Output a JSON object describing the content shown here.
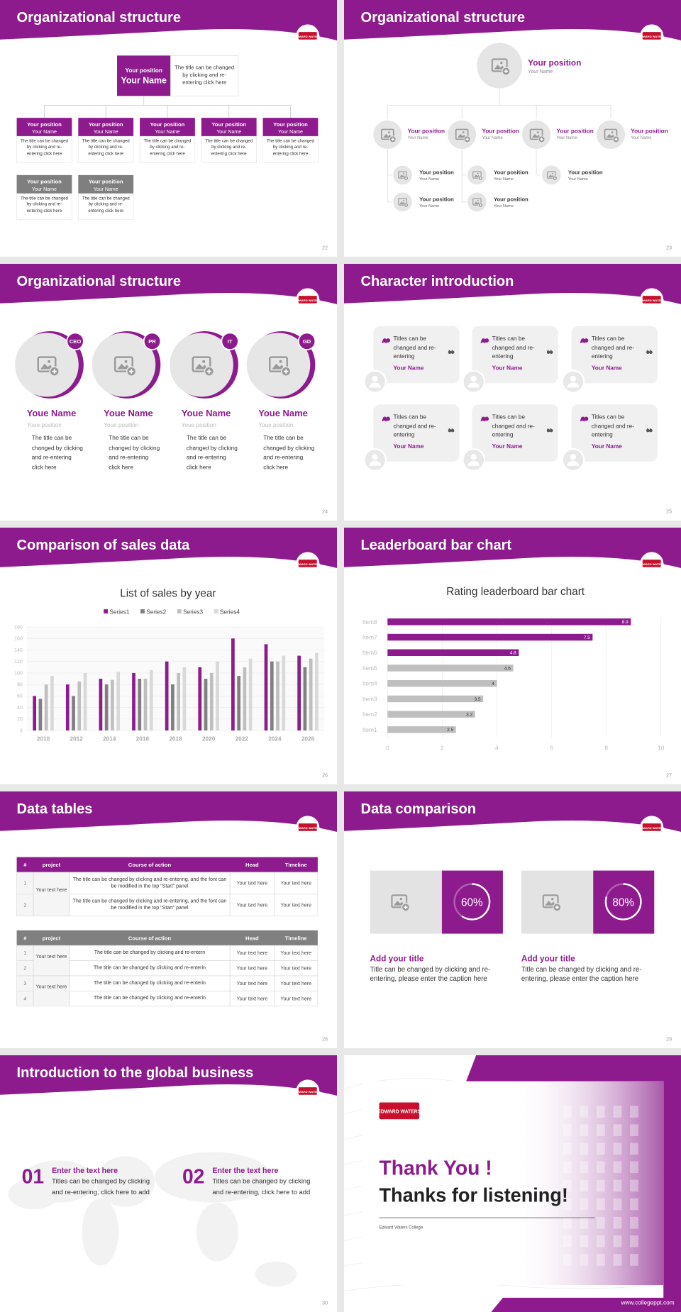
{
  "logo": "EDWARD WATERS",
  "slides": [
    {
      "title": "Organizational structure",
      "page": 22,
      "head": {
        "position": "Your position",
        "name": "Your Name",
        "text": "The title can be changed by clicking and re-entering click here"
      },
      "members": [
        {
          "position": "Your position",
          "name": "Your Name",
          "text": "The title can be changed by clicking and re-entering click here",
          "color": "#8e1b8e"
        },
        {
          "position": "Your position",
          "name": "Your Name",
          "text": "The title can be changed by clicking and re-entering click here",
          "color": "#8e1b8e"
        },
        {
          "position": "Your position",
          "name": "Your Name",
          "text": "The title can be changed by clicking and re-entering click here",
          "color": "#8e1b8e"
        },
        {
          "position": "Your position",
          "name": "Your Name",
          "text": "The title can be changed by clicking and re-entering click here",
          "color": "#8e1b8e"
        },
        {
          "position": "Your position",
          "name": "Your Name",
          "text": "The title can be changed by clicking and re-entering click here",
          "color": "#8e1b8e"
        },
        {
          "position": "Your position",
          "name": "Your Name",
          "text": "The title can be changed by clicking and re-entering click here",
          "color": "#7f7f7f"
        },
        {
          "position": "Your position",
          "name": "Your Name",
          "text": "The title can be changed by clicking and re-entering click here",
          "color": "#7f7f7f"
        }
      ]
    },
    {
      "title": "Organizational structure",
      "page": 23,
      "top": {
        "position": "Your position",
        "name": "Your Name"
      },
      "branches": [
        {
          "position": "Your position",
          "name": "Your Name",
          "children": [
            {
              "position": "Your position",
              "name": "Your Name"
            },
            {
              "position": "Your position",
              "name": "Your Name"
            }
          ]
        },
        {
          "position": "Your position",
          "name": "Your Name",
          "children": [
            {
              "position": "Your position",
              "name": "Your Name"
            },
            {
              "position": "Your position",
              "name": "Your Name"
            }
          ]
        },
        {
          "position": "Your position",
          "name": "Your Name",
          "children": [
            {
              "position": "Your position",
              "name": "Your Name"
            }
          ]
        },
        {
          "position": "Your position",
          "name": "Your Name"
        }
      ]
    },
    {
      "title": "Organizational structure",
      "page": 24,
      "people": [
        {
          "tag": "CEO",
          "name": "Youe Name",
          "position": "Youe position",
          "text": "The title can be changed by clicking and re-entering click here"
        },
        {
          "tag": "PR",
          "name": "Youe Name",
          "position": "Youe position",
          "text": "The title can be changed by clicking and re-entering click here"
        },
        {
          "tag": "IT",
          "name": "Youe Name",
          "position": "Youe position",
          "text": "The title can be changed by clicking and re-entering click here"
        },
        {
          "tag": "GD",
          "name": "Youe Name",
          "position": "Youe position",
          "text": "The title can be changed by clicking and re-entering click here"
        }
      ]
    },
    {
      "title": "Character introduction",
      "page": 25,
      "cards": [
        {
          "text": "Titles can be changed and re-entering",
          "name": "Your Name"
        },
        {
          "text": "Titles can be changed and re-entering",
          "name": "Your Name"
        },
        {
          "text": "Titles can be changed and re-entering",
          "name": "Your Name"
        },
        {
          "text": "Titles can be changed and re-entering",
          "name": "Your Name"
        },
        {
          "text": "Titles can be changed and re-entering",
          "name": "Your Name"
        },
        {
          "text": "Titles can be changed and re-entering",
          "name": "Your Name"
        }
      ]
    },
    {
      "title": "Comparison of sales data",
      "page": 26,
      "chart": {
        "type": "bar",
        "title": "List of sales by year",
        "categories": [
          "2010",
          "2012",
          "2014",
          "2016",
          "2018",
          "2020",
          "2022",
          "2024",
          "2026"
        ],
        "series": [
          {
            "name": "Series1",
            "color": "#8e1b8e",
            "values": [
              60,
              80,
              90,
              100,
              120,
              110,
              160,
              150,
              130
            ]
          },
          {
            "name": "Series2",
            "color": "#808080",
            "values": [
              55,
              60,
              80,
              90,
              80,
              90,
              95,
              120,
              110
            ]
          },
          {
            "name": "Series3",
            "color": "#bfbfbf",
            "values": [
              80,
              85,
              88,
              90,
              100,
              100,
              110,
              120,
              125
            ]
          },
          {
            "name": "Series4",
            "color": "#d9d9d9",
            "values": [
              95,
              100,
              102,
              105,
              110,
              120,
              125,
              130,
              135
            ]
          }
        ],
        "ylim": [
          0,
          180
        ],
        "yticks": [
          0,
          20,
          40,
          60,
          80,
          100,
          120,
          140,
          160,
          180
        ],
        "grid": true,
        "legend": "top"
      }
    },
    {
      "title": "Leaderboard bar chart",
      "page": 27,
      "chart": {
        "type": "barh",
        "title": "Rating leaderboard bar chart",
        "categories": [
          "Item1",
          "Item2",
          "Item3",
          "Item4",
          "Item5",
          "Item6",
          "Item7",
          "Item8"
        ],
        "values": [
          2.5,
          3.2,
          3.5,
          4,
          4.6,
          4.8,
          7.5,
          8.9
        ],
        "colors": [
          "#bfbfbf",
          "#bfbfbf",
          "#bfbfbf",
          "#bfbfbf",
          "#bfbfbf",
          "#8e1b8e",
          "#8e1b8e",
          "#8e1b8e"
        ],
        "xlim": [
          0,
          10
        ],
        "xticks": [
          0,
          2,
          4,
          6,
          8,
          10
        ],
        "grid": true
      }
    },
    {
      "title": "Data tables",
      "page": 28,
      "tables": [
        {
          "color": "#8e1b8e",
          "header": [
            "#",
            "project",
            "Course of action",
            "Head",
            "Timeline"
          ],
          "groups": [
            {
              "project": "Your text here",
              "rows": [
                [
                  1,
                  "The title can be changed by clicking and re-entering, and the font can be modified in the top \"Start\" panel",
                  "Your text here",
                  "Your text here"
                ],
                [
                  2,
                  "The title can be changed by clicking and re-entering, and the font can be modified in the top \"Start\" panel",
                  "Your text here",
                  "Your text here"
                ]
              ]
            }
          ]
        },
        {
          "color": "#808080",
          "header": [
            "#",
            "project",
            "Course of action",
            "Head",
            "Timeline"
          ],
          "groups": [
            {
              "project": "Your text here",
              "rows": [
                [
                  1,
                  "The title can be changed by clicking and re-entern",
                  "Your text here",
                  "Your text here"
                ],
                [
                  2,
                  "The title can be changed by clicking and re-enterin",
                  "Your text here",
                  "Your text here"
                ]
              ]
            },
            {
              "project": "Your text here",
              "rows": [
                [
                  3,
                  "The title can be changed by clicking and re-enterin",
                  "Your text here",
                  "Your text here"
                ],
                [
                  4,
                  "The title can be changed by clicking and re-enterin",
                  "Your text here",
                  "Your text here"
                ]
              ]
            }
          ]
        }
      ]
    },
    {
      "title": "Data comparison",
      "page": 29,
      "items": [
        {
          "value": 60,
          "label": "60%",
          "title": "Add your title",
          "text": "Title can be changed by clicking and re-entering, please enter the caption here"
        },
        {
          "value": 80,
          "label": "80%",
          "title": "Add your title",
          "text": "Title can be changed by clicking and re-entering, please enter the caption here"
        }
      ]
    },
    {
      "title": "Introduction to the global business",
      "page": 30,
      "items": [
        {
          "number": "01",
          "title": "Enter the text here",
          "text": "Titles can be changed by clicking and re-entering, click here to add"
        },
        {
          "number": "02",
          "title": "Enter the text here",
          "text": "Titles can be changed by clicking and re-entering, click here to add"
        }
      ]
    },
    {
      "thanks": "Thank You !",
      "subtitle": "Thanks for listening!",
      "college": "Edward Waters College",
      "url": "www.collegeppt.com"
    }
  ]
}
